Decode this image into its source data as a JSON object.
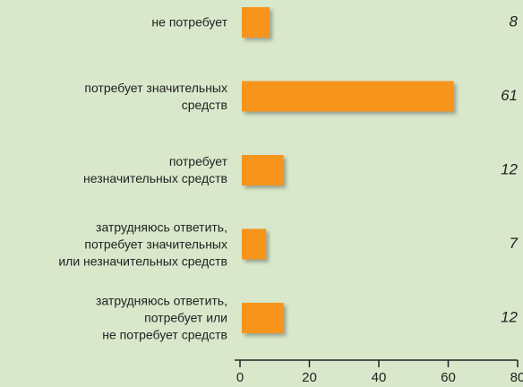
{
  "chart_data": {
    "type": "bar",
    "orientation": "horizontal",
    "categories": [
      "не потребует",
      "потребует значительных\nсредств",
      "потребует\nнезначительных средств",
      "затрудняюсь ответить,\nпотребует значительных\nили незначительных средств",
      "затрудняюсь ответить,\nпотребует или\nне потребует средств"
    ],
    "values": [
      8,
      61,
      12,
      7,
      12
    ],
    "color": "#f7941d",
    "xlim": [
      0,
      80
    ],
    "xticks": [
      0,
      20,
      40,
      60,
      80
    ]
  }
}
